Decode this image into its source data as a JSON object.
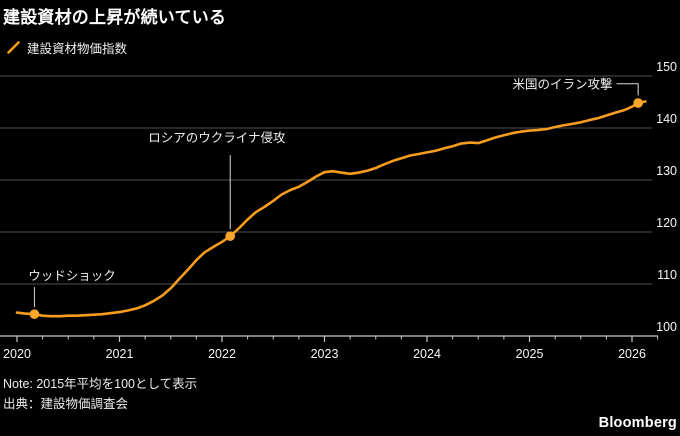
{
  "title": "建設資材の上昇が続いている",
  "legend": {
    "label": "建設資材物価指数"
  },
  "footer": {
    "note": "Note: 2015年平均を100として表示",
    "source": "出典：建設物価調査会",
    "brand": "Bloomberg"
  },
  "colors": {
    "background": "#000000",
    "series": "#f79c1d",
    "dot": "#f9a62b",
    "grid": "#4f4f4f",
    "axis": "#c9c9c9",
    "tick_text": "#f5f5f5",
    "annotation_text": "#f0f0f0",
    "connector": "#dcdcdc"
  },
  "chart_data": {
    "type": "line",
    "title": "建設資材の上昇が続いている",
    "ylabel": "",
    "xlabel": "",
    "ylim": [
      100,
      150
    ],
    "yticks": [
      100,
      110,
      120,
      130,
      140,
      150
    ],
    "xticks": [
      2020,
      2021,
      2022,
      2023,
      2024,
      2025,
      2026
    ],
    "minor_tick_interval": 0.25,
    "grid": "horizontal",
    "axis_side": "right",
    "legend_position": "top-left",
    "series": [
      {
        "name": "建設資材物価指数",
        "x": [
          2020.0,
          2020.08,
          2020.17,
          2020.25,
          2020.33,
          2020.42,
          2020.5,
          2020.58,
          2020.67,
          2020.75,
          2020.83,
          2020.92,
          2021.0,
          2021.08,
          2021.17,
          2021.25,
          2021.33,
          2021.42,
          2021.5,
          2021.58,
          2021.67,
          2021.75,
          2021.83,
          2021.92,
          2022.0,
          2022.08,
          2022.17,
          2022.25,
          2022.33,
          2022.42,
          2022.5,
          2022.58,
          2022.67,
          2022.75,
          2022.83,
          2022.92,
          2023.0,
          2023.08,
          2023.17,
          2023.25,
          2023.33,
          2023.42,
          2023.5,
          2023.58,
          2023.67,
          2023.75,
          2023.83,
          2023.92,
          2024.0,
          2024.08,
          2024.17,
          2024.25,
          2024.33,
          2024.42,
          2024.5,
          2024.58,
          2024.67,
          2024.75,
          2024.83,
          2024.92,
          2025.0,
          2025.08,
          2025.17,
          2025.25,
          2025.33,
          2025.42,
          2025.5,
          2025.58,
          2025.67,
          2025.75,
          2025.83,
          2025.92,
          2026.0,
          2026.06,
          2026.13
        ],
        "values": [
          104.5,
          104.3,
          104.2,
          103.9,
          103.8,
          103.8,
          103.9,
          103.9,
          104.0,
          104.1,
          104.2,
          104.4,
          104.6,
          104.9,
          105.3,
          105.9,
          106.7,
          107.8,
          109.2,
          110.9,
          112.8,
          114.6,
          116.1,
          117.2,
          118.1,
          119.2,
          120.8,
          122.4,
          123.8,
          124.9,
          126.0,
          127.2,
          128.1,
          128.7,
          129.6,
          130.7,
          131.5,
          131.7,
          131.4,
          131.2,
          131.4,
          131.8,
          132.3,
          133.0,
          133.7,
          134.2,
          134.7,
          135.0,
          135.3,
          135.6,
          136.1,
          136.5,
          137.0,
          137.2,
          137.1,
          137.6,
          138.2,
          138.6,
          139.0,
          139.3,
          139.5,
          139.6,
          139.8,
          140.2,
          140.5,
          140.8,
          141.1,
          141.5,
          141.9,
          142.4,
          142.9,
          143.4,
          144.1,
          144.8,
          145.1
        ]
      }
    ],
    "annotations": [
      {
        "label": "ウッドショック",
        "x": 2020.17,
        "y": 104.2,
        "label_x": 2020.11,
        "label_y": 111.6,
        "line_from": 109.4,
        "align": "left",
        "connector": "vertical"
      },
      {
        "label": "ロシアのウクライナ侵攻",
        "x": 2022.08,
        "y": 119.2,
        "label_x": 2021.28,
        "label_y": 138.2,
        "line_from": 134.8,
        "align": "left",
        "connector": "vertical"
      },
      {
        "label": "米国のイラン攻撃",
        "x": 2026.06,
        "y": 144.8,
        "label_x": 2025.81,
        "label_y": 148.5,
        "line_from": 148.5,
        "align": "right",
        "connector": "elbow"
      }
    ]
  }
}
